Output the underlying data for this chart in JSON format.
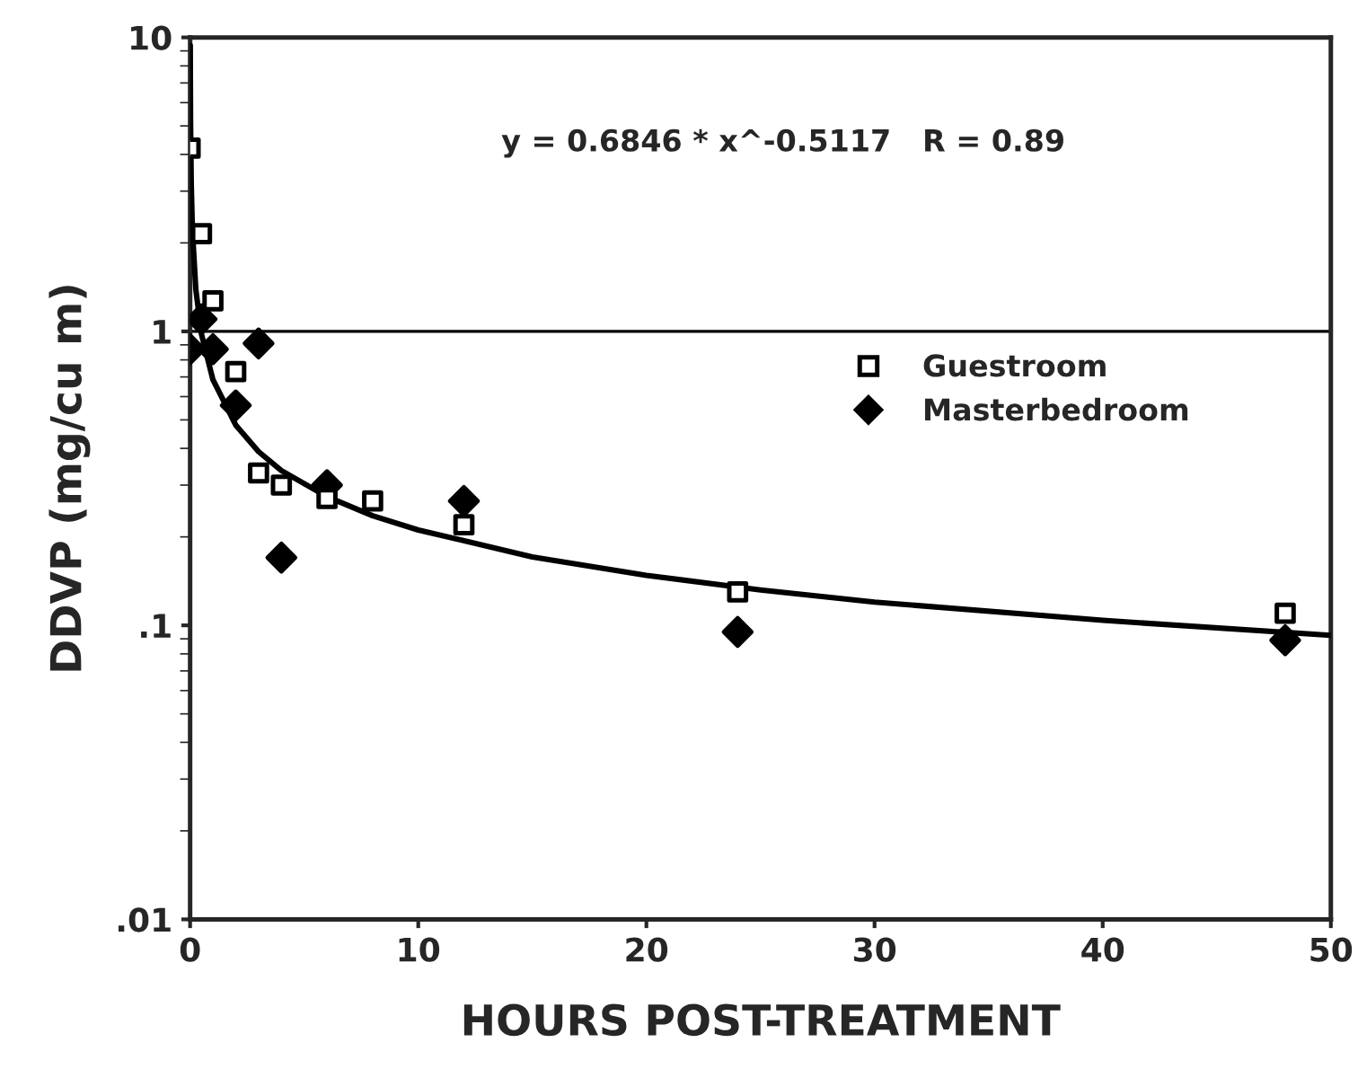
{
  "chart_data": {
    "type": "scatter",
    "xlabel": "HOURS POST-TREATMENT",
    "ylabel": "DDVP (mg/cu m)",
    "annotations": [
      "y = 0.6846 * x^-0.5117   R = 0.89"
    ],
    "log": "y",
    "xlim": [
      0,
      50
    ],
    "xticks": [
      0,
      10,
      20,
      30,
      40,
      50
    ],
    "ylim": [
      0.01,
      10
    ],
    "yticks": [
      {
        "value": 0.01,
        "label": ".01"
      },
      {
        "value": 0.1,
        "label": ".1"
      },
      {
        "value": 1,
        "label": "1"
      },
      {
        "value": 10,
        "label": "10"
      }
    ],
    "grid": false,
    "legend": "right",
    "ref_lines": [
      {
        "axis": "y",
        "value": 1,
        "color": "#000000"
      }
    ],
    "series": [
      {
        "type": "line",
        "color": "#000000",
        "marker": "none",
        "line_style": "solid",
        "x": [
          0.006,
          0.02,
          0.05,
          0.1,
          0.25,
          0.5,
          1,
          2,
          3,
          4,
          6,
          8,
          10,
          15,
          20,
          25,
          30,
          40,
          50
        ],
        "values": [
          9.4,
          5.07,
          3.17,
          2.22,
          1.39,
          0.976,
          0.685,
          0.48,
          0.39,
          0.336,
          0.274,
          0.236,
          0.211,
          0.171,
          0.148,
          0.132,
          0.12,
          0.104,
          0.0925
        ]
      },
      {
        "name": "Masterbedroom",
        "color": "#000000",
        "marker": "diamond",
        "x": [
          0,
          0.5,
          1,
          2,
          3,
          4,
          6,
          8,
          12,
          24,
          48
        ],
        "values": [
          0.87,
          1.1,
          0.87,
          0.56,
          0.91,
          0.17,
          0.3,
          null,
          0.265,
          0.095,
          0.089
        ]
      },
      {
        "name": "Guestroom",
        "color": "#000000",
        "marker": "square",
        "x": [
          0,
          0.5,
          1,
          2,
          3,
          4,
          6,
          8,
          12,
          24,
          48
        ],
        "values": [
          4.2,
          2.15,
          1.27,
          0.73,
          0.33,
          0.3,
          0.27,
          0.265,
          0.22,
          0.13,
          0.11
        ]
      }
    ]
  }
}
